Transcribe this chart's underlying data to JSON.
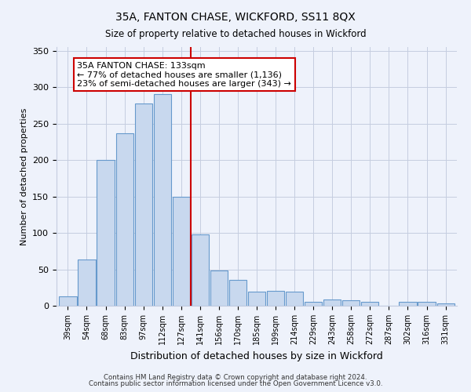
{
  "title": "35A, FANTON CHASE, WICKFORD, SS11 8QX",
  "subtitle": "Size of property relative to detached houses in Wickford",
  "xlabel": "Distribution of detached houses by size in Wickford",
  "ylabel": "Number of detached properties",
  "bar_labels": [
    "39sqm",
    "54sqm",
    "68sqm",
    "83sqm",
    "97sqm",
    "112sqm",
    "127sqm",
    "141sqm",
    "156sqm",
    "170sqm",
    "185sqm",
    "199sqm",
    "214sqm",
    "229sqm",
    "243sqm",
    "258sqm",
    "272sqm",
    "287sqm",
    "302sqm",
    "316sqm",
    "331sqm"
  ],
  "bar_values": [
    13,
    64,
    200,
    237,
    278,
    290,
    150,
    98,
    48,
    35,
    19,
    20,
    19,
    5,
    9,
    8,
    5,
    0,
    5,
    5,
    3
  ],
  "bar_color": "#c8d8ee",
  "bar_edge_color": "#6699cc",
  "vline_index": 6.5,
  "vline_color": "#cc0000",
  "annotation_title": "35A FANTON CHASE: 133sqm",
  "annotation_line1": "← 77% of detached houses are smaller (1,136)",
  "annotation_line2": "23% of semi-detached houses are larger (343) →",
  "annotation_box_color": "#ffffff",
  "annotation_box_edge": "#cc0000",
  "ylim": [
    0,
    355
  ],
  "yticks": [
    0,
    50,
    100,
    150,
    200,
    250,
    300,
    350
  ],
  "footer1": "Contains HM Land Registry data © Crown copyright and database right 2024.",
  "footer2": "Contains public sector information licensed under the Open Government Licence v3.0.",
  "bg_color": "#eef2fb",
  "plot_bg_color": "#eef2fb",
  "grid_color": "#c5cde0",
  "title_fontsize": 10,
  "subtitle_fontsize": 9
}
